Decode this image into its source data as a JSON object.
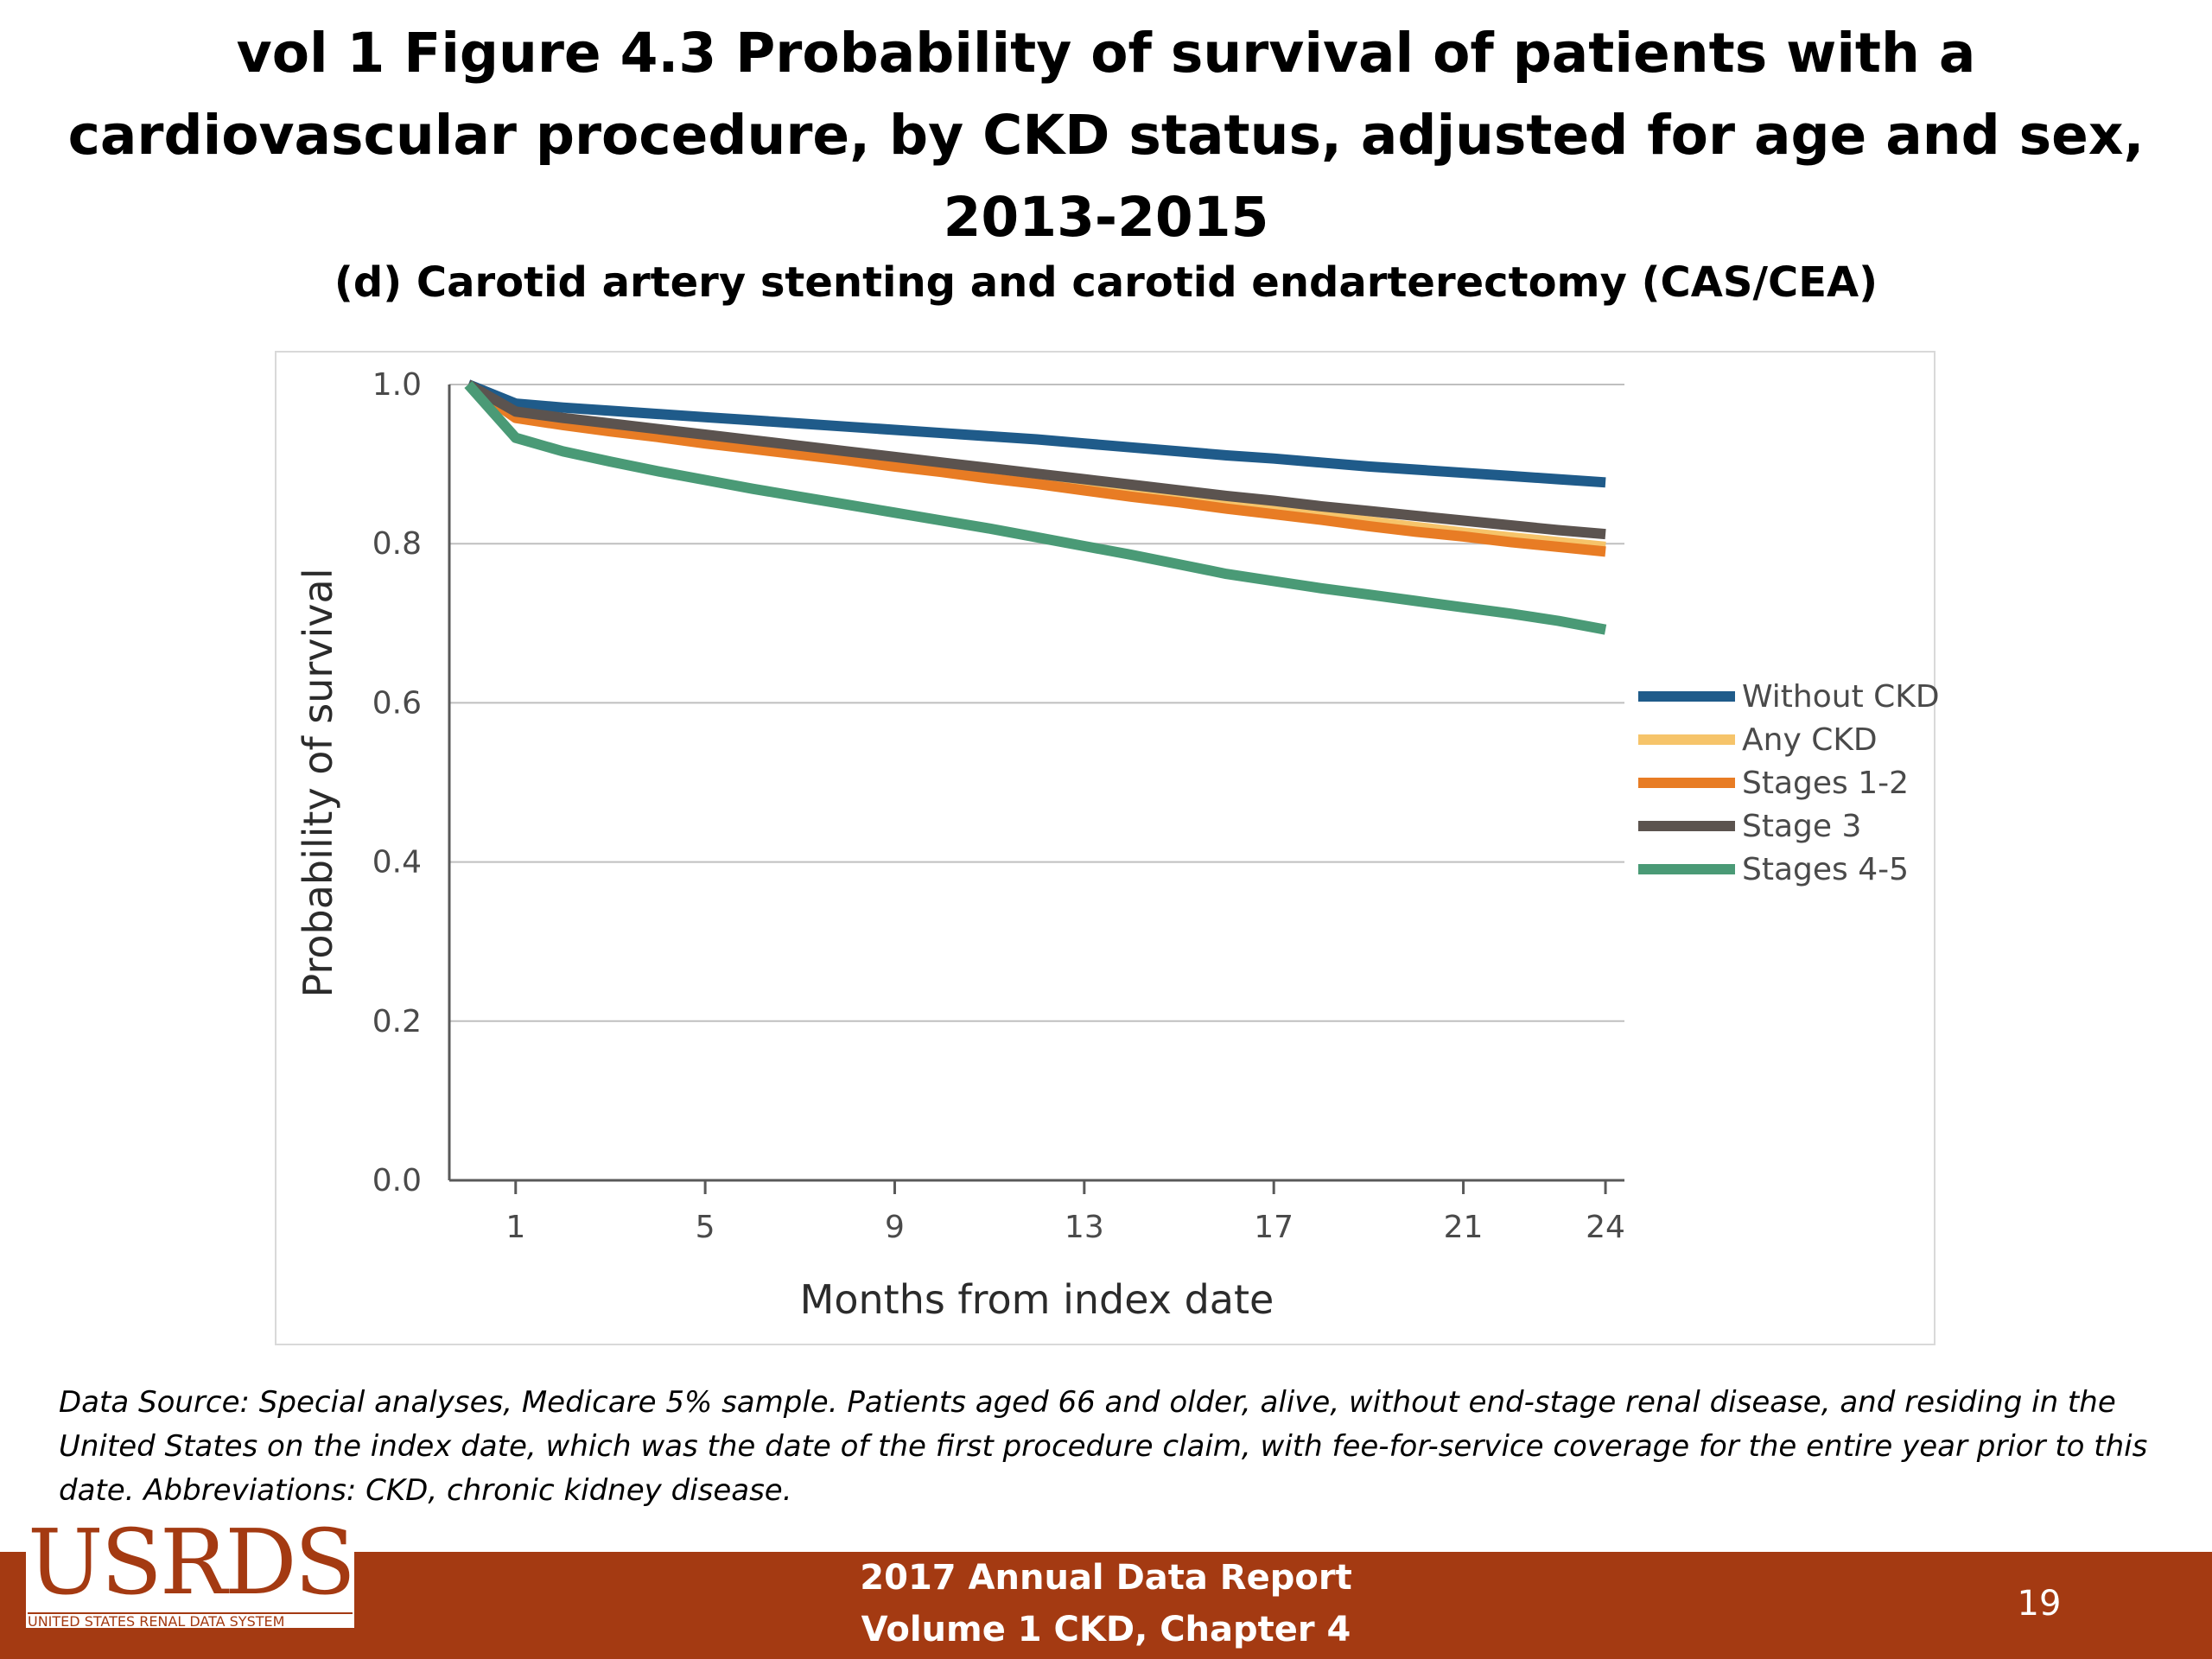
{
  "slide": {
    "title": "vol 1 Figure 4.3 Probability of survival of patients with a cardiovascular procedure, by CKD status, adjusted for age and sex, 2013-2015",
    "footnote": "Data Source: Special analyses, Medicare 5% sample. Patients aged 66 and older, alive, without end-stage renal disease, and residing in the United States on the index date, which was the date of the first procedure claim, with fee-for-service coverage for the entire year prior to this date. Abbreviations: CKD, chronic kidney disease.",
    "footer": {
      "line1": "2017 Annual Data Report",
      "line2": "Volume 1 CKD, Chapter 4",
      "page_number": "19",
      "logo_text": "USRDS",
      "logo_subtext": "UNITED STATES RENAL DATA SYSTEM",
      "bar_color": "#a43a12"
    }
  },
  "chart_data": {
    "type": "line",
    "title": "(d) Carotid artery stenting and carotid endarterectomy (CAS/CEA)",
    "xlabel": "Months from index date",
    "ylabel": "Probability of survival",
    "xlim": [
      -0.4,
      24.4
    ],
    "ylim": [
      0,
      1.0
    ],
    "x_ticks": [
      1,
      5,
      9,
      13,
      17,
      21,
      24
    ],
    "y_ticks": [
      0.0,
      0.2,
      0.4,
      0.6,
      0.8,
      1.0
    ],
    "y_tick_labels": [
      "0.0",
      "0.2",
      "0.4",
      "0.6",
      "0.8",
      "1.0"
    ],
    "grid": "horizontal",
    "legend_position": "right",
    "x": [
      0,
      1,
      2,
      3,
      4,
      5,
      6,
      7,
      8,
      9,
      10,
      11,
      12,
      13,
      14,
      15,
      16,
      17,
      18,
      19,
      20,
      21,
      22,
      23,
      24
    ],
    "series": [
      {
        "name": "Without CKD",
        "color": "#1f5b8a",
        "values": [
          1.0,
          0.976,
          0.971,
          0.967,
          0.963,
          0.959,
          0.955,
          0.951,
          0.947,
          0.943,
          0.939,
          0.935,
          0.931,
          0.926,
          0.921,
          0.916,
          0.911,
          0.907,
          0.902,
          0.897,
          0.893,
          0.889,
          0.885,
          0.881,
          0.877
        ]
      },
      {
        "name": "Any CKD",
        "color": "#f6c46a",
        "values": [
          1.0,
          0.961,
          0.952,
          0.944,
          0.937,
          0.93,
          0.922,
          0.915,
          0.908,
          0.901,
          0.894,
          0.886,
          0.879,
          0.871,
          0.864,
          0.856,
          0.849,
          0.842,
          0.835,
          0.828,
          0.821,
          0.814,
          0.808,
          0.802,
          0.796
        ]
      },
      {
        "name": "Stages 1-2",
        "color": "#e87c24",
        "values": [
          1.0,
          0.958,
          0.949,
          0.941,
          0.934,
          0.926,
          0.919,
          0.912,
          0.905,
          0.897,
          0.89,
          0.882,
          0.875,
          0.867,
          0.859,
          0.852,
          0.844,
          0.837,
          0.83,
          0.822,
          0.815,
          0.809,
          0.802,
          0.796,
          0.79
        ]
      },
      {
        "name": "Stage 3",
        "color": "#5b534f",
        "values": [
          1.0,
          0.966,
          0.958,
          0.951,
          0.944,
          0.937,
          0.93,
          0.923,
          0.916,
          0.909,
          0.902,
          0.895,
          0.888,
          0.881,
          0.874,
          0.867,
          0.86,
          0.854,
          0.847,
          0.841,
          0.835,
          0.829,
          0.823,
          0.817,
          0.812
        ]
      },
      {
        "name": "Stages 4-5",
        "color": "#4a9a76",
        "values": [
          1.0,
          0.933,
          0.916,
          0.903,
          0.891,
          0.88,
          0.869,
          0.859,
          0.849,
          0.839,
          0.829,
          0.819,
          0.808,
          0.797,
          0.786,
          0.774,
          0.762,
          0.753,
          0.744,
          0.736,
          0.728,
          0.72,
          0.712,
          0.703,
          0.692
        ]
      }
    ]
  }
}
